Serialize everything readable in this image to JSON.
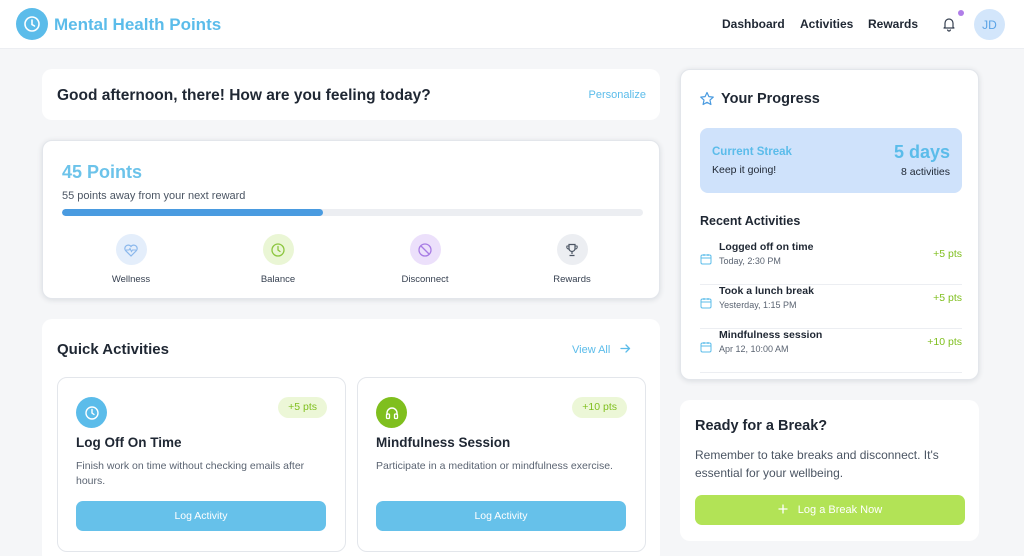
{
  "header": {
    "app_title": "Mental Health Points",
    "nav": [
      {
        "label": "Dashboard"
      },
      {
        "label": "Activities"
      },
      {
        "label": "Rewards"
      }
    ],
    "avatar_initials": "JD",
    "notification_icon": "bell-icon"
  },
  "greeting": {
    "text": "Good afternoon, there! How are you feeling today?",
    "personalize_label": "Personalize"
  },
  "points": {
    "title": "45 Points",
    "subtitle": "55 points away from your next reward",
    "progress_fraction": 0.45,
    "categories": [
      {
        "label": "Wellness",
        "icon": "heart-pulse-icon",
        "color": "#9fc6f0"
      },
      {
        "label": "Balance",
        "icon": "clock-icon",
        "color": "#b5df6a"
      },
      {
        "label": "Disconnect",
        "icon": "no-connection-icon",
        "color": "#b48ae8"
      },
      {
        "label": "Rewards",
        "icon": "trophy-icon",
        "color": "#9ca3af"
      }
    ]
  },
  "quick_activities": {
    "title": "Quick Activities",
    "view_all_label": "View All",
    "cards": [
      {
        "name": "Log Off On Time",
        "badge": "+5 pts",
        "description": "Finish work on time without checking emails after hours.",
        "button_label": "Log Activity",
        "icon": "clock-icon",
        "icon_color": "#5bbcea"
      },
      {
        "name": "Mindfulness Session",
        "badge": "+10 pts",
        "description": "Participate in a meditation or mindfulness exercise.",
        "button_label": "Log Activity",
        "icon": "headphones-icon",
        "icon_color": "#7fbf1e"
      }
    ]
  },
  "progress": {
    "title": "Your Progress",
    "streak_label": "Current Streak",
    "streak_note": "Keep it going!",
    "streak_days": "5 days",
    "streak_count": "8 activities",
    "recent_title": "Recent Activities",
    "recent": [
      {
        "name": "Logged off on time",
        "time": "Today, 2:30 PM",
        "points": "+5 pts"
      },
      {
        "name": "Took a lunch break",
        "time": "Yesterday, 1:15 PM",
        "points": "+5 pts"
      },
      {
        "name": "Mindfulness session",
        "time": "Apr 12, 10:00 AM",
        "points": "+10 pts"
      }
    ]
  },
  "break_card": {
    "title": "Ready for a Break?",
    "description": "Remember to take breaks and disconnect. It's essential for your wellbeing.",
    "button_label": "Log a Break Now"
  },
  "colors": {
    "brand": "#5bbcea",
    "points_green": "#7fbf1e",
    "progress_blue": "#4a9be0",
    "break_button": "#b2e356"
  }
}
